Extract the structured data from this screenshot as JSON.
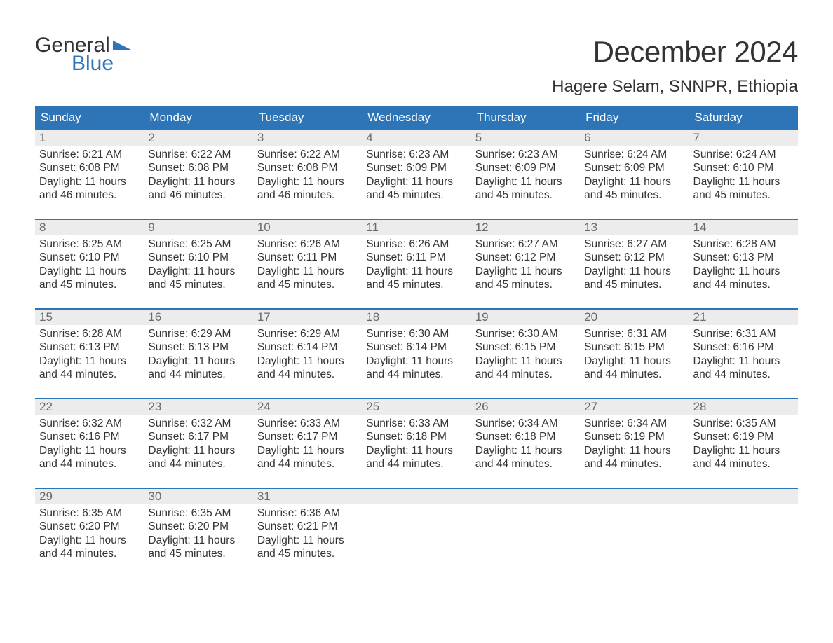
{
  "logo": {
    "line1": "General",
    "line2": "Blue"
  },
  "title": "December 2024",
  "location": "Hagere Selam, SNNPR, Ethiopia",
  "colors": {
    "header_bg": "#2d75b6",
    "header_text": "#ffffff",
    "daynum_bg": "#ececec",
    "daynum_border": "#2d75b6",
    "daynum_text": "#6a6a6a",
    "body_text": "#333333",
    "page_bg": "#ffffff",
    "logo_blue": "#2d75b6"
  },
  "typography": {
    "title_fontsize": 42,
    "location_fontsize": 24,
    "weekday_fontsize": 17,
    "daynum_fontsize": 17,
    "body_fontsize": 15.5,
    "font_family": "Arial"
  },
  "weekdays": [
    "Sunday",
    "Monday",
    "Tuesday",
    "Wednesday",
    "Thursday",
    "Friday",
    "Saturday"
  ],
  "weeks": [
    [
      {
        "n": "1",
        "sunrise": "Sunrise: 6:21 AM",
        "sunset": "Sunset: 6:08 PM",
        "day1": "Daylight: 11 hours",
        "day2": "and 46 minutes."
      },
      {
        "n": "2",
        "sunrise": "Sunrise: 6:22 AM",
        "sunset": "Sunset: 6:08 PM",
        "day1": "Daylight: 11 hours",
        "day2": "and 46 minutes."
      },
      {
        "n": "3",
        "sunrise": "Sunrise: 6:22 AM",
        "sunset": "Sunset: 6:08 PM",
        "day1": "Daylight: 11 hours",
        "day2": "and 46 minutes."
      },
      {
        "n": "4",
        "sunrise": "Sunrise: 6:23 AM",
        "sunset": "Sunset: 6:09 PM",
        "day1": "Daylight: 11 hours",
        "day2": "and 45 minutes."
      },
      {
        "n": "5",
        "sunrise": "Sunrise: 6:23 AM",
        "sunset": "Sunset: 6:09 PM",
        "day1": "Daylight: 11 hours",
        "day2": "and 45 minutes."
      },
      {
        "n": "6",
        "sunrise": "Sunrise: 6:24 AM",
        "sunset": "Sunset: 6:09 PM",
        "day1": "Daylight: 11 hours",
        "day2": "and 45 minutes."
      },
      {
        "n": "7",
        "sunrise": "Sunrise: 6:24 AM",
        "sunset": "Sunset: 6:10 PM",
        "day1": "Daylight: 11 hours",
        "day2": "and 45 minutes."
      }
    ],
    [
      {
        "n": "8",
        "sunrise": "Sunrise: 6:25 AM",
        "sunset": "Sunset: 6:10 PM",
        "day1": "Daylight: 11 hours",
        "day2": "and 45 minutes."
      },
      {
        "n": "9",
        "sunrise": "Sunrise: 6:25 AM",
        "sunset": "Sunset: 6:10 PM",
        "day1": "Daylight: 11 hours",
        "day2": "and 45 minutes."
      },
      {
        "n": "10",
        "sunrise": "Sunrise: 6:26 AM",
        "sunset": "Sunset: 6:11 PM",
        "day1": "Daylight: 11 hours",
        "day2": "and 45 minutes."
      },
      {
        "n": "11",
        "sunrise": "Sunrise: 6:26 AM",
        "sunset": "Sunset: 6:11 PM",
        "day1": "Daylight: 11 hours",
        "day2": "and 45 minutes."
      },
      {
        "n": "12",
        "sunrise": "Sunrise: 6:27 AM",
        "sunset": "Sunset: 6:12 PM",
        "day1": "Daylight: 11 hours",
        "day2": "and 45 minutes."
      },
      {
        "n": "13",
        "sunrise": "Sunrise: 6:27 AM",
        "sunset": "Sunset: 6:12 PM",
        "day1": "Daylight: 11 hours",
        "day2": "and 45 minutes."
      },
      {
        "n": "14",
        "sunrise": "Sunrise: 6:28 AM",
        "sunset": "Sunset: 6:13 PM",
        "day1": "Daylight: 11 hours",
        "day2": "and 44 minutes."
      }
    ],
    [
      {
        "n": "15",
        "sunrise": "Sunrise: 6:28 AM",
        "sunset": "Sunset: 6:13 PM",
        "day1": "Daylight: 11 hours",
        "day2": "and 44 minutes."
      },
      {
        "n": "16",
        "sunrise": "Sunrise: 6:29 AM",
        "sunset": "Sunset: 6:13 PM",
        "day1": "Daylight: 11 hours",
        "day2": "and 44 minutes."
      },
      {
        "n": "17",
        "sunrise": "Sunrise: 6:29 AM",
        "sunset": "Sunset: 6:14 PM",
        "day1": "Daylight: 11 hours",
        "day2": "and 44 minutes."
      },
      {
        "n": "18",
        "sunrise": "Sunrise: 6:30 AM",
        "sunset": "Sunset: 6:14 PM",
        "day1": "Daylight: 11 hours",
        "day2": "and 44 minutes."
      },
      {
        "n": "19",
        "sunrise": "Sunrise: 6:30 AM",
        "sunset": "Sunset: 6:15 PM",
        "day1": "Daylight: 11 hours",
        "day2": "and 44 minutes."
      },
      {
        "n": "20",
        "sunrise": "Sunrise: 6:31 AM",
        "sunset": "Sunset: 6:15 PM",
        "day1": "Daylight: 11 hours",
        "day2": "and 44 minutes."
      },
      {
        "n": "21",
        "sunrise": "Sunrise: 6:31 AM",
        "sunset": "Sunset: 6:16 PM",
        "day1": "Daylight: 11 hours",
        "day2": "and 44 minutes."
      }
    ],
    [
      {
        "n": "22",
        "sunrise": "Sunrise: 6:32 AM",
        "sunset": "Sunset: 6:16 PM",
        "day1": "Daylight: 11 hours",
        "day2": "and 44 minutes."
      },
      {
        "n": "23",
        "sunrise": "Sunrise: 6:32 AM",
        "sunset": "Sunset: 6:17 PM",
        "day1": "Daylight: 11 hours",
        "day2": "and 44 minutes."
      },
      {
        "n": "24",
        "sunrise": "Sunrise: 6:33 AM",
        "sunset": "Sunset: 6:17 PM",
        "day1": "Daylight: 11 hours",
        "day2": "and 44 minutes."
      },
      {
        "n": "25",
        "sunrise": "Sunrise: 6:33 AM",
        "sunset": "Sunset: 6:18 PM",
        "day1": "Daylight: 11 hours",
        "day2": "and 44 minutes."
      },
      {
        "n": "26",
        "sunrise": "Sunrise: 6:34 AM",
        "sunset": "Sunset: 6:18 PM",
        "day1": "Daylight: 11 hours",
        "day2": "and 44 minutes."
      },
      {
        "n": "27",
        "sunrise": "Sunrise: 6:34 AM",
        "sunset": "Sunset: 6:19 PM",
        "day1": "Daylight: 11 hours",
        "day2": "and 44 minutes."
      },
      {
        "n": "28",
        "sunrise": "Sunrise: 6:35 AM",
        "sunset": "Sunset: 6:19 PM",
        "day1": "Daylight: 11 hours",
        "day2": "and 44 minutes."
      }
    ],
    [
      {
        "n": "29",
        "sunrise": "Sunrise: 6:35 AM",
        "sunset": "Sunset: 6:20 PM",
        "day1": "Daylight: 11 hours",
        "day2": "and 44 minutes."
      },
      {
        "n": "30",
        "sunrise": "Sunrise: 6:35 AM",
        "sunset": "Sunset: 6:20 PM",
        "day1": "Daylight: 11 hours",
        "day2": "and 45 minutes."
      },
      {
        "n": "31",
        "sunrise": "Sunrise: 6:36 AM",
        "sunset": "Sunset: 6:21 PM",
        "day1": "Daylight: 11 hours",
        "day2": "and 45 minutes."
      },
      null,
      null,
      null,
      null
    ]
  ]
}
